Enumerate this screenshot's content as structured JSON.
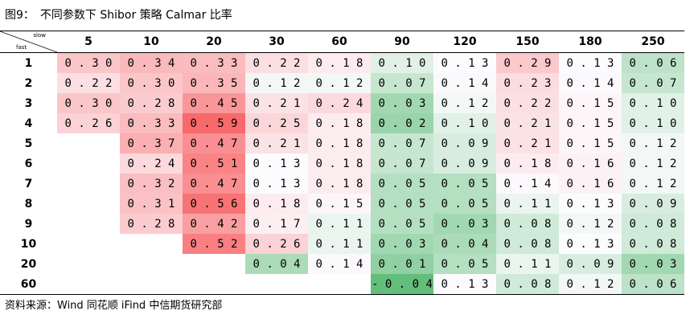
{
  "figure": {
    "title": "图9：　不同参数下 Shibor 策略 Calmar 比率",
    "source": "资料来源：Wind 同花顺 iFind 中信期货研究部"
  },
  "chart_data": {
    "type": "heatmap",
    "corner": {
      "column_axis": "slow",
      "row_axis": "fast"
    },
    "columns": [
      "5",
      "10",
      "20",
      "30",
      "60",
      "90",
      "120",
      "150",
      "180",
      "250"
    ],
    "rows": [
      {
        "label": "1",
        "values": [
          0.3,
          0.34,
          0.33,
          0.22,
          0.18,
          0.1,
          0.13,
          0.29,
          0.13,
          0.06
        ]
      },
      {
        "label": "2",
        "values": [
          0.22,
          0.3,
          0.35,
          0.12,
          0.12,
          0.07,
          0.14,
          0.23,
          0.14,
          0.07
        ]
      },
      {
        "label": "3",
        "values": [
          0.3,
          0.28,
          0.45,
          0.21,
          0.24,
          0.03,
          0.12,
          0.22,
          0.15,
          0.1
        ]
      },
      {
        "label": "4",
        "values": [
          0.26,
          0.33,
          0.59,
          0.25,
          0.18,
          0.02,
          0.1,
          0.21,
          0.15,
          0.1
        ]
      },
      {
        "label": "5",
        "values": [
          null,
          0.37,
          0.47,
          0.21,
          0.18,
          0.07,
          0.09,
          0.21,
          0.15,
          0.12
        ]
      },
      {
        "label": "6",
        "values": [
          null,
          0.24,
          0.51,
          0.13,
          0.18,
          0.07,
          0.09,
          0.18,
          0.16,
          0.12
        ]
      },
      {
        "label": "7",
        "values": [
          null,
          0.32,
          0.47,
          0.13,
          0.18,
          0.05,
          0.05,
          0.14,
          0.16,
          0.12
        ]
      },
      {
        "label": "8",
        "values": [
          null,
          0.31,
          0.56,
          0.18,
          0.15,
          0.05,
          0.05,
          0.11,
          0.13,
          0.09
        ]
      },
      {
        "label": "9",
        "values": [
          null,
          0.28,
          0.42,
          0.17,
          0.11,
          0.05,
          0.03,
          0.08,
          0.12,
          0.08
        ]
      },
      {
        "label": "10",
        "values": [
          null,
          null,
          0.52,
          0.26,
          0.11,
          0.03,
          0.04,
          0.08,
          0.13,
          0.08
        ]
      },
      {
        "label": "20",
        "values": [
          null,
          null,
          null,
          0.04,
          0.14,
          0.01,
          0.05,
          0.11,
          0.09,
          0.03
        ]
      },
      {
        "label": "60",
        "values": [
          null,
          null,
          null,
          null,
          null,
          -0.04,
          0.13,
          0.08,
          0.12,
          0.06
        ]
      }
    ],
    "color_scale": {
      "low": "#63be7b",
      "mid": "#fcfcff",
      "high": "#f8696b"
    },
    "value_format": "two decimals, digits separated by spaces"
  }
}
